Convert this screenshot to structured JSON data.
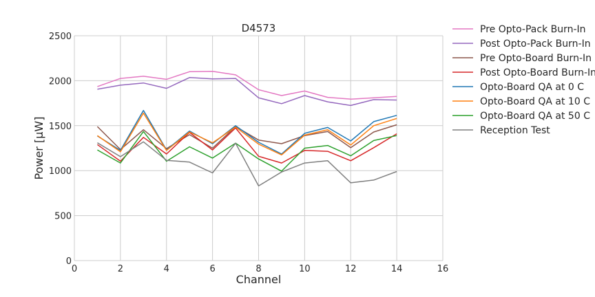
{
  "chart_data": {
    "type": "line",
    "title": "D4573",
    "xlabel": "Channel",
    "ylabel": "Power [μW]",
    "xlim": [
      0,
      16
    ],
    "ylim": [
      0,
      2500
    ],
    "xticks": [
      0,
      2,
      4,
      6,
      8,
      10,
      12,
      14,
      16
    ],
    "yticks": [
      0,
      500,
      1000,
      1500,
      2000,
      2500
    ],
    "grid": true,
    "legend_position": "outside-right",
    "x": [
      1,
      2,
      3,
      4,
      5,
      6,
      7,
      8,
      9,
      10,
      11,
      12,
      13,
      14
    ],
    "series": [
      {
        "name": "Pre Opto-Pack Burn-In",
        "color": "#e377c2",
        "values": [
          1935,
          2025,
          2050,
          2015,
          2100,
          2105,
          2065,
          1900,
          1835,
          1885,
          1815,
          1795,
          1810,
          1825
        ]
      },
      {
        "name": "Post Opto-Pack Burn-In",
        "color": "#9467bd",
        "values": [
          1905,
          1950,
          1975,
          1915,
          2035,
          2020,
          2025,
          1810,
          1745,
          1835,
          1765,
          1725,
          1790,
          1785
        ]
      },
      {
        "name": "Pre Opto-Board Burn-In",
        "color": "#8c564b",
        "values": [
          1490,
          1235,
          1455,
          1245,
          1400,
          1250,
          1490,
          1340,
          1300,
          1390,
          1435,
          1255,
          1430,
          1510
        ]
      },
      {
        "name": "Post Opto-Board Burn-In",
        "color": "#d62728",
        "values": [
          1290,
          1105,
          1370,
          1185,
          1425,
          1230,
          1475,
          1160,
          1085,
          1225,
          1215,
          1110,
          1255,
          1410
        ]
      },
      {
        "name": "Opto-Board QA at 0 C",
        "color": "#1f77b4",
        "values": [
          1385,
          1225,
          1670,
          1230,
          1440,
          1300,
          1500,
          1315,
          1185,
          1415,
          1480,
          1330,
          1545,
          1615
        ]
      },
      {
        "name": "Opto-Board QA at 10 C",
        "color": "#ff7f0e",
        "values": [
          1390,
          1210,
          1640,
          1225,
          1430,
          1310,
          1485,
          1295,
          1175,
          1395,
          1455,
          1285,
          1500,
          1580
        ]
      },
      {
        "name": "Opto-Board QA at 50 C",
        "color": "#2ca02c",
        "values": [
          1230,
          1085,
          1435,
          1105,
          1265,
          1140,
          1305,
          1130,
          995,
          1250,
          1280,
          1165,
          1335,
          1390
        ]
      },
      {
        "name": "Reception Test",
        "color": "#7f7f7f",
        "values": [
          1310,
          1155,
          1320,
          1115,
          1095,
          975,
          1305,
          830,
          985,
          1085,
          1110,
          865,
          895,
          990
        ]
      }
    ]
  }
}
